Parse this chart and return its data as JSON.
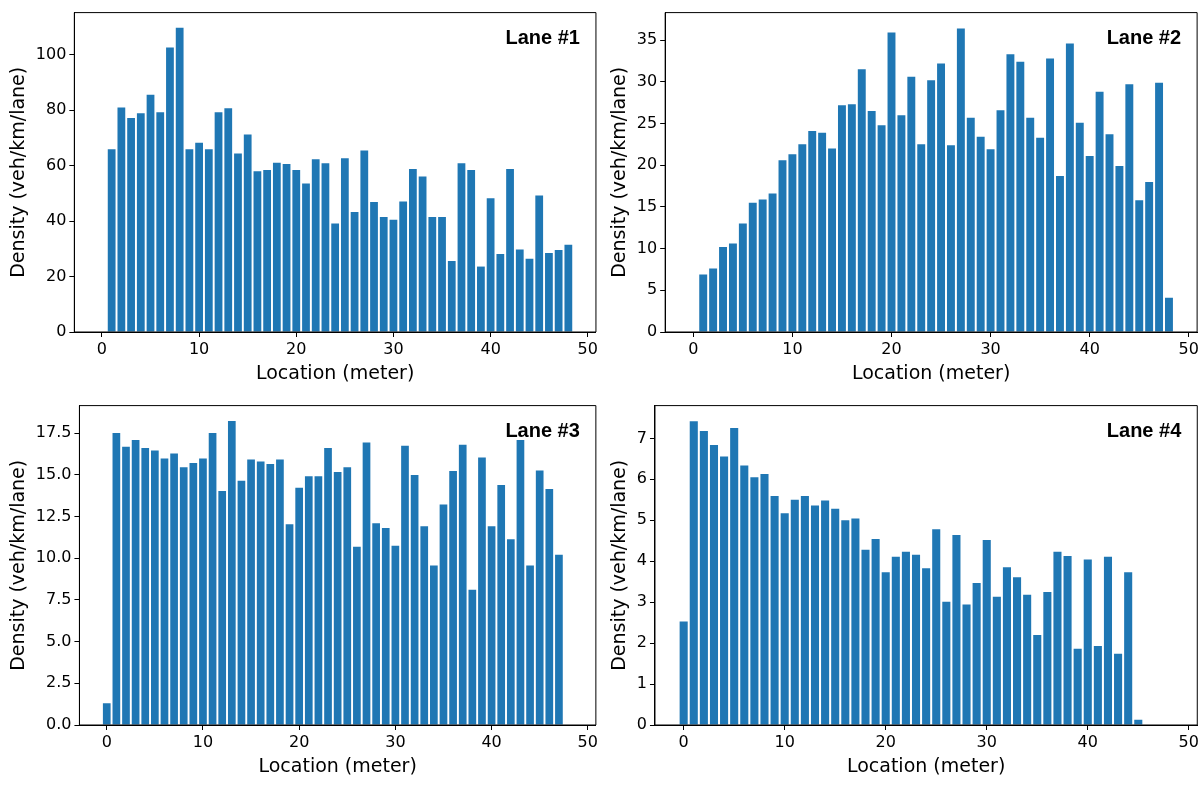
{
  "chart_data": [
    {
      "type": "bar",
      "x": [
        0,
        1,
        2,
        3,
        4,
        5,
        6,
        7,
        8,
        9,
        10,
        11,
        12,
        13,
        14,
        15,
        16,
        17,
        18,
        19,
        20,
        21,
        22,
        23,
        24,
        25,
        26,
        27,
        28,
        29,
        30,
        31,
        32,
        33,
        34,
        35,
        36,
        37,
        38,
        39,
        40,
        41,
        42,
        43,
        44,
        45,
        46,
        47,
        48
      ],
      "values": [
        0,
        65.9,
        81.0,
        77.2,
        78.9,
        85.6,
        79.3,
        102.6,
        109.7,
        65.9,
        68.3,
        65.9,
        79.3,
        80.7,
        64.4,
        71.2,
        58.0,
        58.4,
        61.0,
        60.6,
        58.4,
        53.6,
        62.3,
        60.9,
        39.1,
        62.7,
        43.3,
        65.5,
        46.9,
        41.5,
        40.5,
        47.1,
        58.8,
        56.1,
        41.5,
        41.5,
        25.6,
        60.9,
        58.4,
        23.6,
        48.2,
        28.1,
        58.8,
        29.8,
        26.4,
        49.2,
        28.5,
        29.6,
        31.5
      ],
      "color": "#1f77b4",
      "xlabel": "Location (meter)",
      "ylabel": "Density (veh/km/lane)",
      "annotations": [
        "Lane #1"
      ],
      "xlim": [
        -2.84,
        50.84
      ],
      "xticks": [
        0,
        10,
        20,
        30,
        40,
        50
      ],
      "ylim": [
        0,
        115.2
      ],
      "yticks": [
        0,
        20,
        40,
        60,
        80,
        100
      ]
    },
    {
      "type": "bar",
      "x": [
        0,
        1,
        2,
        3,
        4,
        5,
        6,
        7,
        8,
        9,
        10,
        11,
        12,
        13,
        14,
        15,
        16,
        17,
        18,
        19,
        20,
        21,
        22,
        23,
        24,
        25,
        26,
        27,
        28,
        29,
        30,
        31,
        32,
        33,
        34,
        35,
        36,
        37,
        38,
        39,
        40,
        41,
        42,
        43,
        44,
        45,
        46,
        47,
        48
      ],
      "values": [
        0,
        6.9,
        7.6,
        10.2,
        10.6,
        13.0,
        15.5,
        15.9,
        16.6,
        20.6,
        21.3,
        22.5,
        24.1,
        23.9,
        22.0,
        27.2,
        27.3,
        31.5,
        26.5,
        24.8,
        35.9,
        26.0,
        30.6,
        22.5,
        30.2,
        32.2,
        22.4,
        36.4,
        25.7,
        23.4,
        21.9,
        26.6,
        33.3,
        32.4,
        25.7,
        23.3,
        32.8,
        18.7,
        34.6,
        25.1,
        21.1,
        28.8,
        23.7,
        19.9,
        29.7,
        15.8,
        18.0,
        29.9,
        4.1
      ],
      "color": "#1f77b4",
      "xlabel": "Location (meter)",
      "ylabel": "Density (veh/km/lane)",
      "annotations": [
        "Lane #2"
      ],
      "xlim": [
        -2.84,
        50.84
      ],
      "xticks": [
        0,
        10,
        20,
        30,
        40,
        50
      ],
      "ylim": [
        0,
        38.3
      ],
      "yticks": [
        0,
        5,
        10,
        15,
        20,
        25,
        30,
        35
      ]
    },
    {
      "type": "bar",
      "x": [
        0,
        1,
        2,
        3,
        4,
        5,
        6,
        7,
        8,
        9,
        10,
        11,
        12,
        13,
        14,
        15,
        16,
        17,
        18,
        19,
        20,
        21,
        22,
        23,
        24,
        25,
        26,
        27,
        28,
        29,
        30,
        31,
        32,
        33,
        34,
        35,
        36,
        37,
        38,
        39,
        40,
        41,
        42,
        43,
        44,
        45,
        46,
        47,
        48
      ],
      "values": [
        1.31,
        17.52,
        16.69,
        17.1,
        16.62,
        16.46,
        15.98,
        16.29,
        15.46,
        15.71,
        15.98,
        17.52,
        14.04,
        18.23,
        14.65,
        15.92,
        15.81,
        15.65,
        15.92,
        12.05,
        14.23,
        14.92,
        14.92,
        16.62,
        15.17,
        15.46,
        10.69,
        16.94,
        12.11,
        11.82,
        10.76,
        16.75,
        15.0,
        11.92,
        9.57,
        13.23,
        15.23,
        16.81,
        8.11,
        16.04,
        11.92,
        14.4,
        11.15,
        17.1,
        9.57,
        15.27,
        14.15,
        10.22,
        0
      ],
      "color": "#1f77b4",
      "xlabel": "Location (meter)",
      "ylabel": "Density (veh/km/lane)",
      "annotations": [
        "Lane #3"
      ],
      "xlim": [
        -2.84,
        50.84
      ],
      "xticks": [
        0,
        10,
        20,
        30,
        40,
        50
      ],
      "ylim": [
        0,
        19.16
      ],
      "yticks": [
        {
          "value": 0,
          "label": "0.0"
        },
        {
          "value": 2.5,
          "label": "2.5"
        },
        {
          "value": 5,
          "label": "5.0"
        },
        {
          "value": 7.5,
          "label": "7.5"
        },
        {
          "value": 10,
          "label": "10.0"
        },
        {
          "value": 12.5,
          "label": "12.5"
        },
        {
          "value": 15,
          "label": "15.0"
        },
        {
          "value": 17.5,
          "label": "17.5"
        }
      ]
    },
    {
      "type": "bar",
      "x": [
        0,
        1,
        2,
        3,
        4,
        5,
        6,
        7,
        8,
        9,
        10,
        11,
        12,
        13,
        14,
        15,
        16,
        17,
        18,
        19,
        20,
        21,
        22,
        23,
        24,
        25,
        26,
        27,
        28,
        29,
        30,
        31,
        32,
        33,
        34,
        35,
        36,
        37,
        38,
        39,
        40,
        41,
        42,
        43,
        44,
        45,
        46,
        47,
        48
      ],
      "values": [
        2.53,
        7.42,
        7.18,
        6.84,
        6.56,
        7.25,
        6.34,
        6.05,
        6.13,
        5.59,
        5.17,
        5.5,
        5.59,
        5.36,
        5.48,
        5.28,
        5.0,
        5.04,
        4.28,
        4.54,
        3.73,
        4.11,
        4.23,
        4.16,
        3.83,
        4.78,
        3.01,
        4.64,
        2.94,
        3.47,
        4.52,
        3.13,
        3.85,
        3.61,
        3.18,
        2.2,
        3.25,
        4.23,
        4.13,
        1.86,
        4.04,
        1.93,
        4.11,
        1.74,
        3.73,
        0.13,
        0,
        0,
        0
      ],
      "color": "#1f77b4",
      "xlabel": "Location (meter)",
      "ylabel": "Density (veh/km/lane)",
      "annotations": [
        "Lane #4"
      ],
      "xlim": [
        -2.84,
        50.84
      ],
      "xticks": [
        0,
        10,
        20,
        30,
        40,
        50
      ],
      "ylim": [
        0,
        7.8
      ],
      "yticks": [
        0,
        1,
        2,
        3,
        4,
        5,
        6,
        7
      ]
    }
  ]
}
